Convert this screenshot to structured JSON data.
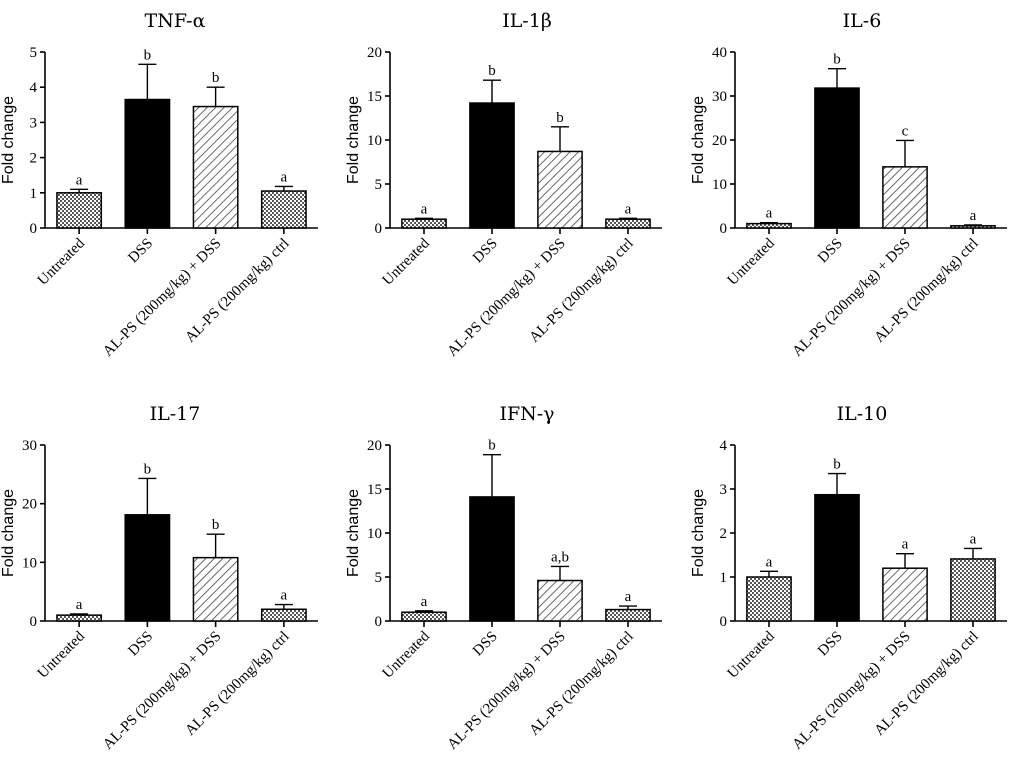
{
  "figure": {
    "ylabel": "Fold change",
    "categories": [
      "Untreated",
      "DSS",
      "AL-PS (200mg/kg) + DSS",
      "AL-PS (200mg/kg) ctrl"
    ],
    "bar_styles": [
      "checker",
      "solid",
      "diagonal",
      "checker"
    ]
  },
  "chart_data": [
    {
      "type": "bar",
      "title": "TNF-α",
      "ylabel": "Fold change",
      "categories": [
        "Untreated",
        "DSS",
        "AL-PS (200mg/kg) + DSS",
        "AL-PS (200mg/kg) ctrl"
      ],
      "values": [
        1.0,
        3.65,
        3.45,
        1.05
      ],
      "errors": [
        0.1,
        1.0,
        0.55,
        0.13
      ],
      "labels": [
        "a",
        "b",
        "b",
        "a"
      ],
      "ylim": [
        0,
        5
      ],
      "yticks": [
        "0",
        "1",
        "2",
        "3",
        "4",
        "5"
      ]
    },
    {
      "type": "bar",
      "title": "IL-1β",
      "ylabel": "Fold change",
      "categories": [
        "Untreated",
        "DSS",
        "AL-PS (200mg/kg) + DSS",
        "AL-PS (200mg/kg) ctrl"
      ],
      "values": [
        1.0,
        14.2,
        8.7,
        1.0
      ],
      "errors": [
        0.1,
        2.6,
        2.8,
        0.1
      ],
      "labels": [
        "a",
        "b",
        "b",
        "a"
      ],
      "ylim": [
        0,
        20
      ],
      "yticks": [
        "0",
        "5",
        "10",
        "15",
        "20"
      ]
    },
    {
      "type": "bar",
      "title": "IL-6",
      "ylabel": "Fold change",
      "categories": [
        "Untreated",
        "DSS",
        "AL-PS (200mg/kg) + DSS",
        "AL-PS (200mg/kg) ctrl"
      ],
      "values": [
        1.0,
        31.8,
        13.9,
        0.5
      ],
      "errors": [
        0.2,
        4.4,
        6.0,
        0.2
      ],
      "labels": [
        "a",
        "b",
        "c",
        "a"
      ],
      "ylim": [
        0,
        40
      ],
      "yticks": [
        "0",
        "10",
        "20",
        "30",
        "40"
      ]
    },
    {
      "type": "bar",
      "title": "IL-17",
      "ylabel": "Fold change",
      "categories": [
        "Untreated",
        "DSS",
        "AL-PS (200mg/kg) + DSS",
        "AL-PS (200mg/kg) ctrl"
      ],
      "values": [
        1.0,
        18.1,
        10.8,
        2.0
      ],
      "errors": [
        0.2,
        6.2,
        4.0,
        0.8
      ],
      "labels": [
        "a",
        "b",
        "b",
        "a"
      ],
      "ylim": [
        0,
        30
      ],
      "yticks": [
        "0",
        "10",
        "20",
        "30"
      ]
    },
    {
      "type": "bar",
      "title": "IFN-γ",
      "ylabel": "Fold change",
      "categories": [
        "Untreated",
        "DSS",
        "AL-PS (200mg/kg) + DSS",
        "AL-PS (200mg/kg) ctrl"
      ],
      "values": [
        1.0,
        14.1,
        4.6,
        1.3
      ],
      "errors": [
        0.15,
        4.8,
        1.6,
        0.4
      ],
      "labels": [
        "a",
        "b",
        "a,b",
        "a"
      ],
      "ylim": [
        0,
        20
      ],
      "yticks": [
        "0",
        "5",
        "10",
        "15",
        "20"
      ]
    },
    {
      "type": "bar",
      "title": "IL-10",
      "ylabel": "Fold change",
      "categories": [
        "Untreated",
        "DSS",
        "AL-PS (200mg/kg) + DSS",
        "AL-PS (200mg/kg) ctrl"
      ],
      "values": [
        1.0,
        2.87,
        1.2,
        1.41
      ],
      "errors": [
        0.13,
        0.48,
        0.33,
        0.24
      ],
      "labels": [
        "a",
        "b",
        "a",
        "a"
      ],
      "ylim": [
        0,
        4
      ],
      "yticks": [
        "0",
        "1",
        "2",
        "3",
        "4"
      ]
    }
  ]
}
